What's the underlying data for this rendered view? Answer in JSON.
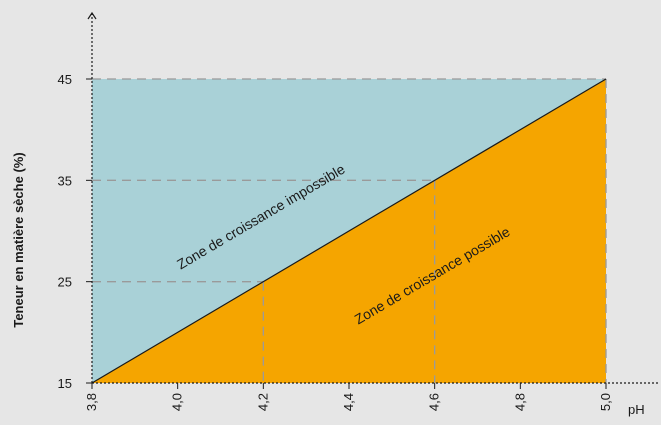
{
  "chart_data": {
    "type": "area",
    "xlabel": "pH",
    "ylabel": "Teneur en matière sèche (%)",
    "x_ticks": [
      "3,8",
      "4,0",
      "4,2",
      "4,4",
      "4,6",
      "4,8",
      "5,0"
    ],
    "x_tick_values": [
      3.8,
      4.0,
      4.2,
      4.4,
      4.6,
      4.8,
      5.0
    ],
    "y_ticks": [
      "15",
      "25",
      "35",
      "45"
    ],
    "y_tick_values": [
      15,
      25,
      35,
      45
    ],
    "xlim": [
      3.8,
      5.0
    ],
    "ylim": [
      15,
      45
    ],
    "boundary_line": {
      "x": [
        3.8,
        5.0
      ],
      "y": [
        15,
        45
      ]
    },
    "reference_points": [
      {
        "x": 4.2,
        "y": 25
      },
      {
        "x": 4.6,
        "y": 35
      },
      {
        "x": 5.0,
        "y": 45
      }
    ],
    "zones": [
      {
        "label": "Zone de croissance impossible",
        "position": "above-line",
        "color": "#a9d1d7"
      },
      {
        "label": "Zone de croissance possible",
        "position": "below-line",
        "color": "#f5a500"
      }
    ],
    "grid": false,
    "legend": "none"
  },
  "colors": {
    "background": "#e6e6e6",
    "impossible_zone": "#a9d1d7",
    "possible_zone": "#f5a500",
    "line": "#1a1a1a",
    "dashed": "#9a9a9a"
  }
}
